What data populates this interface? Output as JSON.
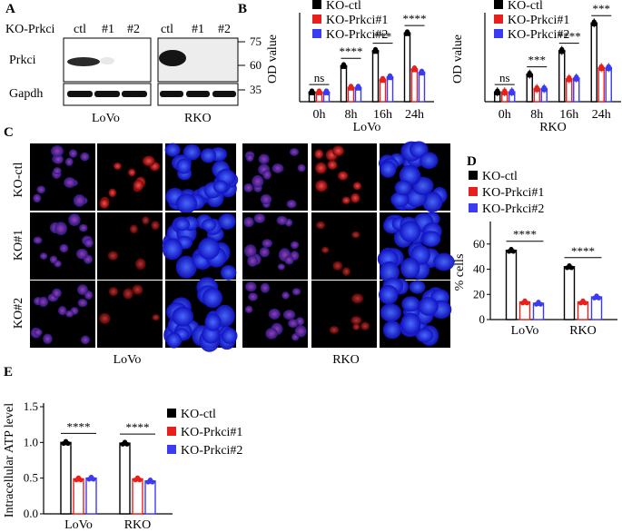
{
  "panels": {
    "A": "A",
    "B": "B",
    "C": "C",
    "D": "D",
    "E": "E"
  },
  "panel_a": {
    "header": "KO-Prkci",
    "lanes": [
      "ctl",
      "#1",
      "#2",
      "ctl",
      "#1",
      "#2"
    ],
    "rows": [
      "Prkci",
      "Gapdh"
    ],
    "markers": [
      "75",
      "60",
      "35"
    ],
    "cell_lines": [
      "LoVo",
      "RKO"
    ]
  },
  "panel_c": {
    "rows": [
      "KO-ctl",
      "KO#1",
      "KO#2"
    ],
    "cell_lines": [
      "LoVo",
      "RKO"
    ]
  },
  "legend_labels": [
    "KO-ctl",
    "KO-Prkci#1",
    "KO-Prkci#2"
  ],
  "colors": {
    "ctl": "#000000",
    "ko1": "#e8201c",
    "ko2": "#3b3bf2"
  },
  "chart_data": [
    {
      "id": "B-LoVo",
      "type": "bar",
      "xlabel": "LoVo",
      "ylabel": "OD value",
      "categories": [
        "0h",
        "8h",
        "16h",
        "24h"
      ],
      "series": [
        {
          "name": "KO-ctl",
          "values": [
            0.15,
            0.55,
            0.78,
            1.05
          ]
        },
        {
          "name": "KO-Prkci#1",
          "values": [
            0.15,
            0.22,
            0.34,
            0.5
          ]
        },
        {
          "name": "KO-Prkci#2",
          "values": [
            0.15,
            0.22,
            0.38,
            0.45
          ]
        }
      ],
      "annotations": [
        "ns",
        "****",
        "***",
        "****"
      ],
      "ylim": [
        0,
        1.3
      ]
    },
    {
      "id": "B-RKO",
      "type": "bar",
      "xlabel": "RKO",
      "ylabel": "OD value",
      "categories": [
        "0h",
        "8h",
        "16h",
        "24h"
      ],
      "series": [
        {
          "name": "KO-ctl",
          "values": [
            0.15,
            0.42,
            0.78,
            1.2
          ]
        },
        {
          "name": "KO-Prkci#1",
          "values": [
            0.15,
            0.2,
            0.35,
            0.52
          ]
        },
        {
          "name": "KO-Prkci#2",
          "values": [
            0.15,
            0.2,
            0.36,
            0.52
          ]
        }
      ],
      "annotations": [
        "ns",
        "***",
        "****",
        "***"
      ],
      "ylim": [
        0,
        1.3
      ]
    },
    {
      "id": "D",
      "type": "bar",
      "ylabel": "% cells",
      "categories": [
        "LoVo",
        "RKO"
      ],
      "series": [
        {
          "name": "KO-ctl",
          "values": [
            55,
            42
          ]
        },
        {
          "name": "KO-Prkci#1",
          "values": [
            14,
            14
          ]
        },
        {
          "name": "KO-Prkci#2",
          "values": [
            13,
            18
          ]
        }
      ],
      "annotations": [
        "****",
        "****"
      ],
      "yticks": [
        0,
        20,
        40,
        60
      ],
      "ylim": [
        0,
        75
      ]
    },
    {
      "id": "E",
      "type": "bar",
      "ylabel": "Intracellular ATP level",
      "categories": [
        "LoVo",
        "RKO"
      ],
      "series": [
        {
          "name": "KO-ctl",
          "values": [
            1.0,
            0.99
          ]
        },
        {
          "name": "KO-Prkci#1",
          "values": [
            0.49,
            0.49
          ]
        },
        {
          "name": "KO-Prkci#2",
          "values": [
            0.5,
            0.46
          ]
        }
      ],
      "annotations": [
        "****",
        "****"
      ],
      "yticks": [
        0.0,
        0.5,
        1.0,
        1.5
      ],
      "ylim": [
        0,
        1.5
      ]
    }
  ]
}
